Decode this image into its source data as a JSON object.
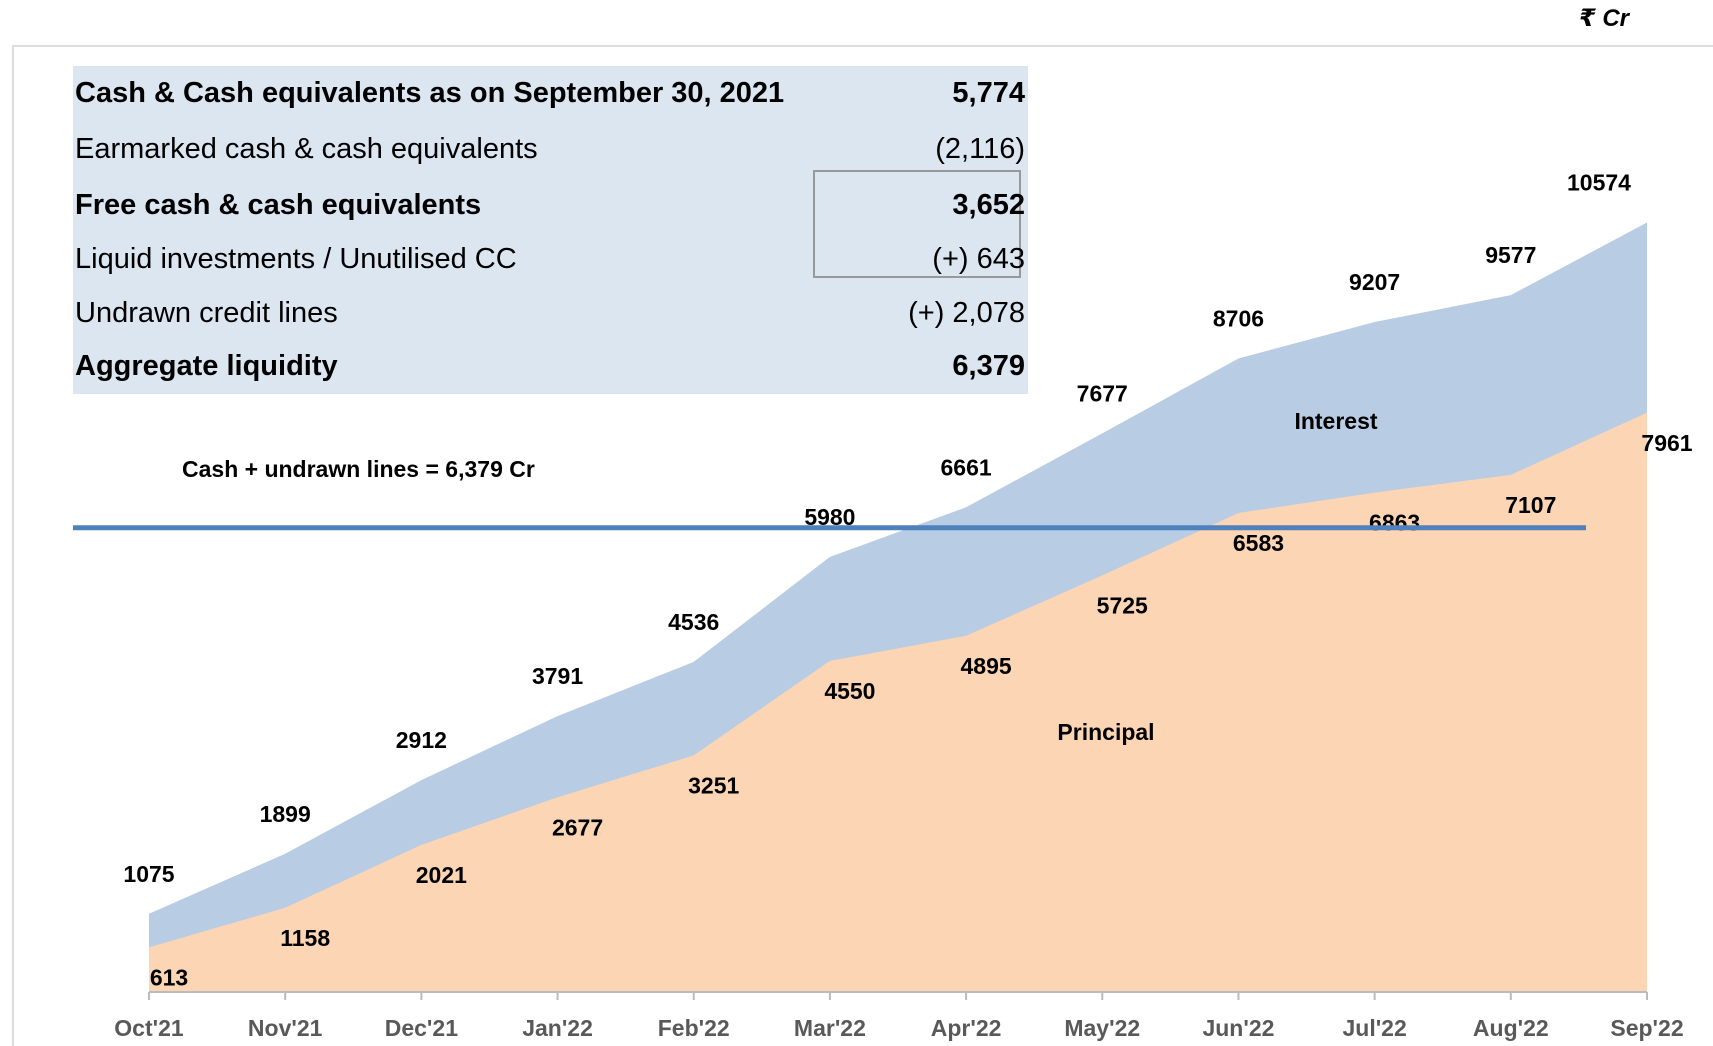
{
  "chart_data": {
    "type": "area",
    "unit": "₹ Cr",
    "categories": [
      "Oct'21",
      "Nov'21",
      "Dec'21",
      "Jan'22",
      "Feb'22",
      "Mar'22",
      "Apr'22",
      "May'22",
      "Jun'22",
      "Jul'22",
      "Aug'22",
      "Sep'22"
    ],
    "series": [
      {
        "name": "Interest",
        "color": "#b8cce4",
        "values": [
          1075,
          1899,
          2912,
          3791,
          4536,
          5980,
          6661,
          7677,
          8706,
          9207,
          9577,
          10574
        ]
      },
      {
        "name": "Principal",
        "color": "#fcd5b5",
        "values": [
          613,
          1158,
          2021,
          2677,
          3251,
          4550,
          4895,
          5725,
          6583,
          6863,
          7107,
          7961
        ]
      }
    ],
    "ylim": [
      0,
      13000
    ],
    "reference_line": {
      "value": 6379,
      "label": "Cash + undrawn lines = 6,379 Cr",
      "color": "#4f81bd"
    }
  },
  "table": {
    "rows": [
      [
        "Cash & Cash equivalents as on September 30, 2021",
        "5,774"
      ],
      [
        "Earmarked cash & cash equivalents",
        "(2,116)"
      ],
      [
        "Free cash & cash equivalents",
        "3,652"
      ],
      [
        "Liquid investments / Unutilised CC",
        "(+) 643"
      ],
      [
        "Undrawn credit lines",
        "(+) 2,078"
      ],
      [
        "Aggregate liquidity",
        "6,379"
      ]
    ]
  }
}
